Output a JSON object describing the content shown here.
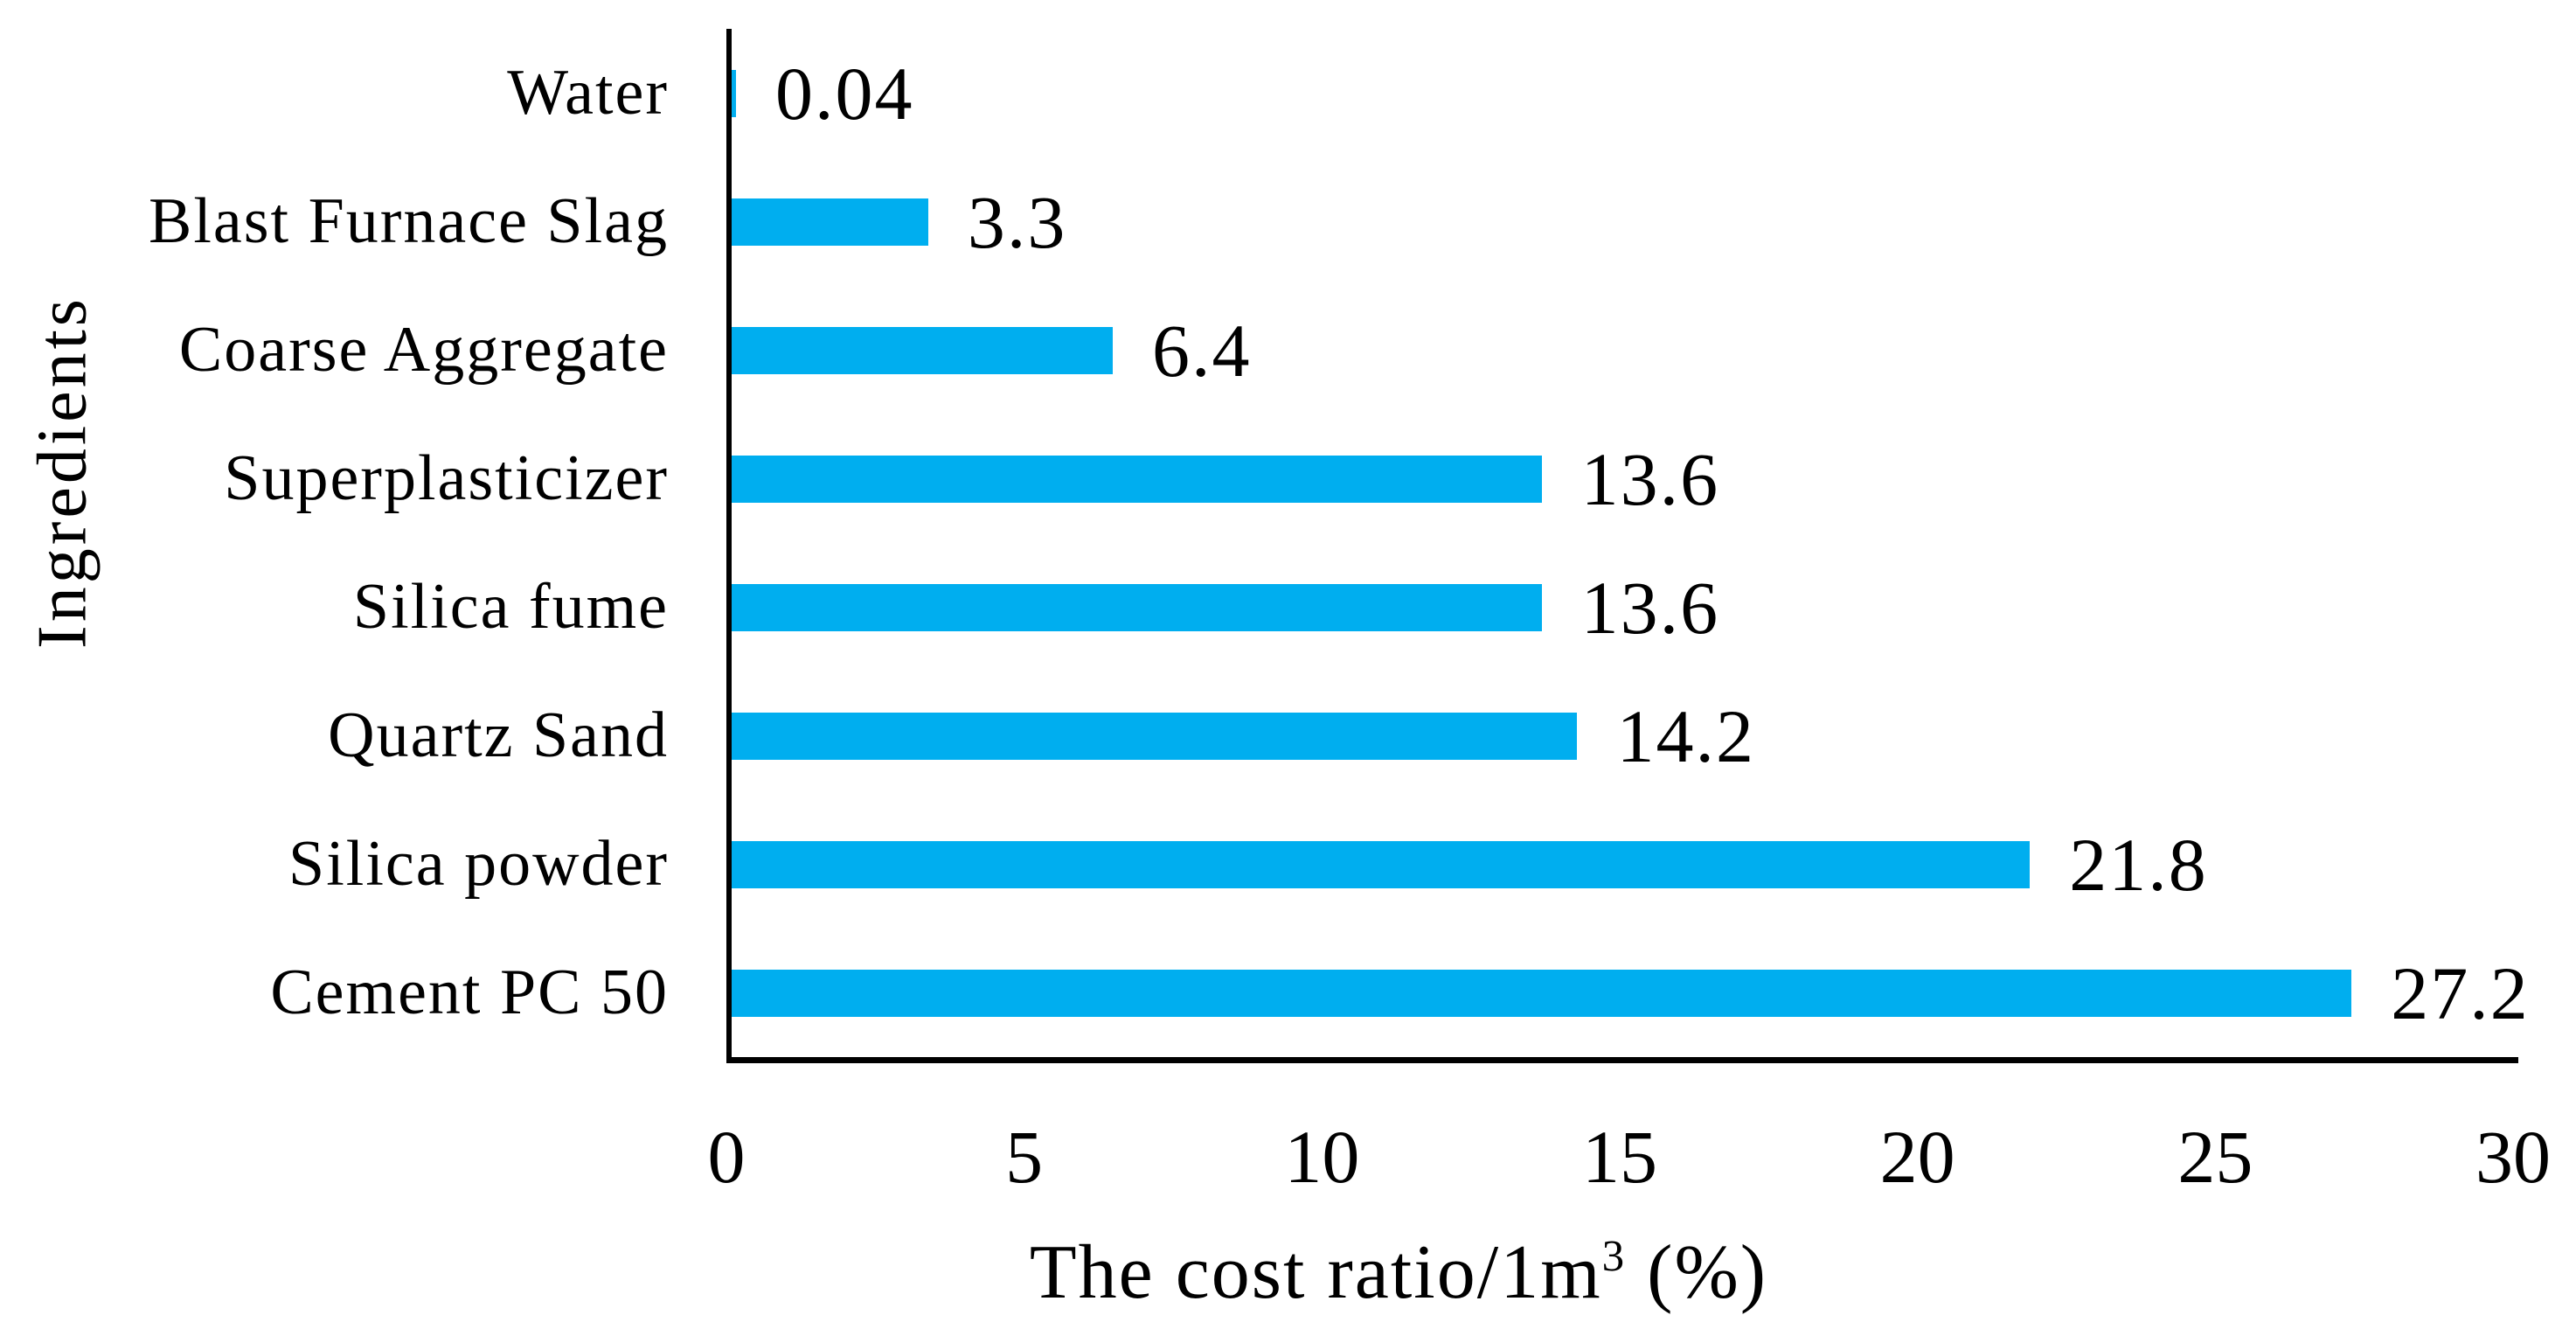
{
  "chart_data": {
    "type": "bar",
    "orientation": "horizontal",
    "categories": [
      "Water",
      "Blast Furnace Slag",
      "Coarse Aggregate",
      "Superplasticizer",
      "Silica fume",
      "Quartz Sand",
      "Silica powder",
      "Cement PC 50"
    ],
    "values": [
      0.04,
      3.3,
      6.4,
      13.6,
      13.6,
      14.2,
      21.8,
      27.2
    ],
    "value_labels": [
      "0.04",
      "3.3",
      "6.4",
      "13.6",
      "13.6",
      "14.2",
      "21.8",
      "27.2"
    ],
    "ylabel": "Ingredients",
    "xlabel": {
      "prefix": "The cost ratio/1m",
      "superscript": "3",
      "suffix": " (%)"
    },
    "xlim": [
      0,
      30
    ],
    "x_ticks": [
      0,
      5,
      10,
      15,
      20,
      25,
      30
    ],
    "x_tick_labels": [
      "0",
      "5",
      "10",
      "15",
      "20",
      "25",
      "30"
    ],
    "bar_color": "#00AEEF",
    "axis_color": "#000000",
    "text_color": "#000000",
    "background_color": "#ffffff",
    "grid": false,
    "value_labels_position": "right-of-bar"
  }
}
